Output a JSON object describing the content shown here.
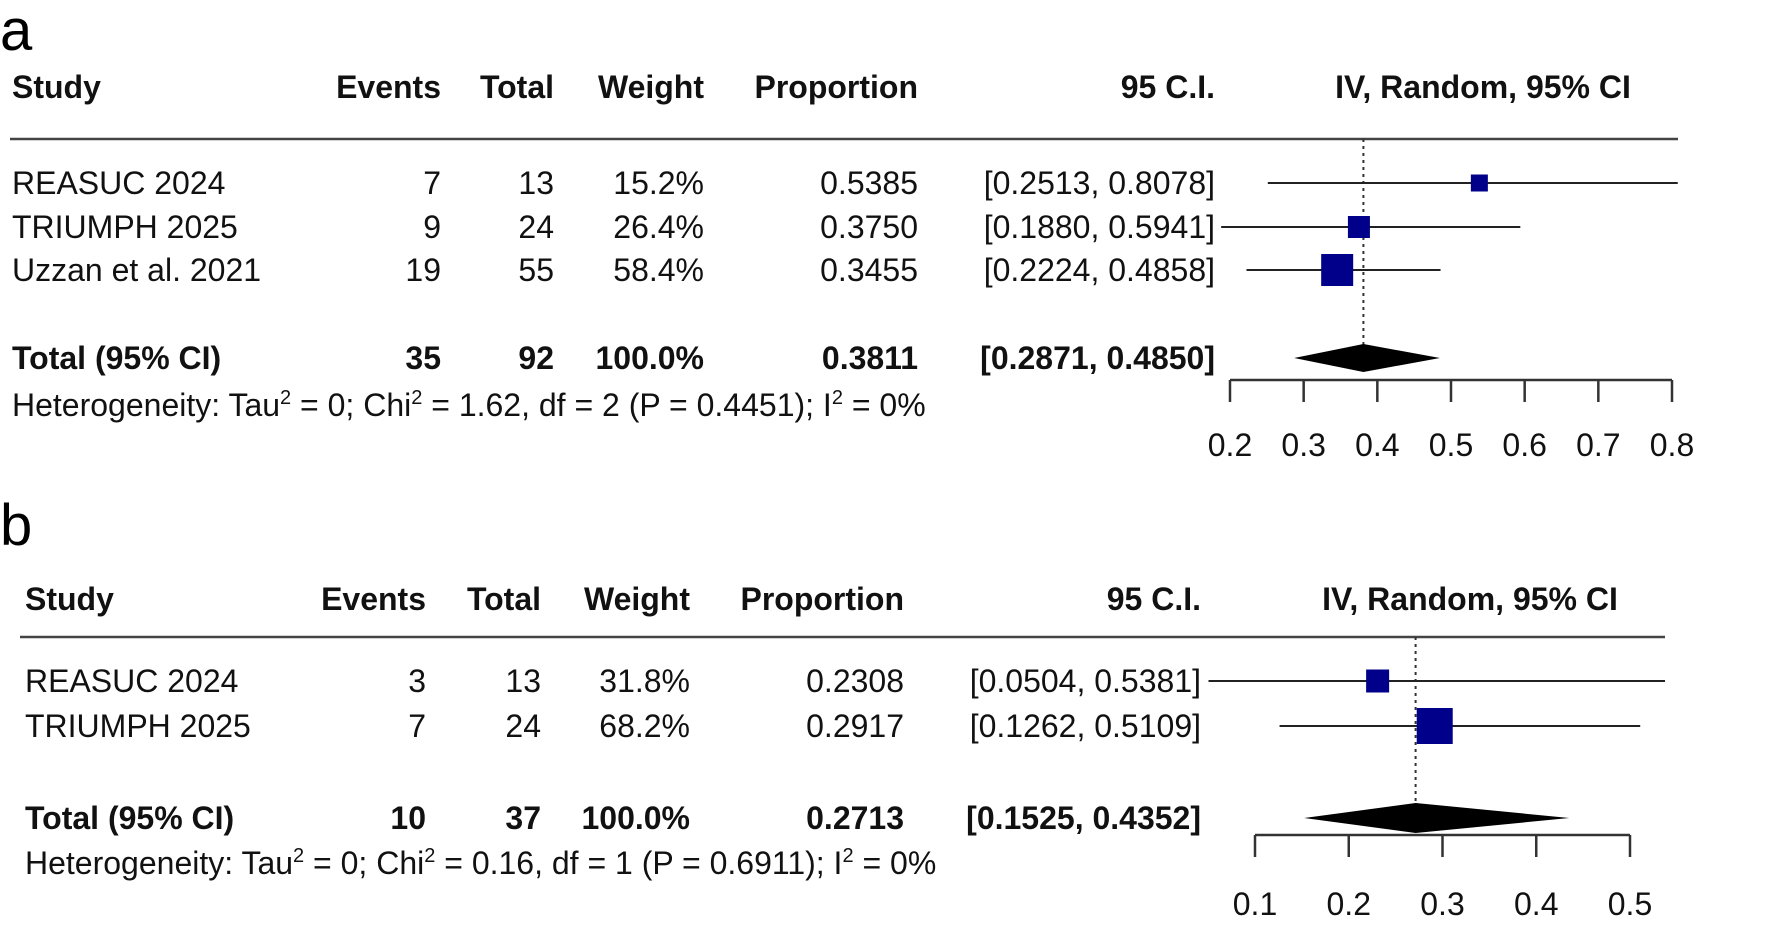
{
  "chart_data": [
    {
      "type": "forest",
      "panel_label": "a",
      "headers": {
        "study": "Study",
        "events": "Events",
        "total": "Total",
        "weight": "Weight",
        "proportion": "Proportion",
        "ci": "95 C.I.",
        "plot": "IV, Random, 95% CI"
      },
      "studies": [
        {
          "name": "REASUC 2024",
          "events": "7",
          "total": "13",
          "weight": "15.2%",
          "proportion": "0.5385",
          "ci": "[0.2513, 0.8078]",
          "est": 0.5385,
          "lo": 0.2513,
          "hi": 0.8078,
          "w": 15.2
        },
        {
          "name": "TRIUMPH 2025",
          "events": "9",
          "total": "24",
          "weight": "26.4%",
          "proportion": "0.3750",
          "ci": "[0.1880, 0.5941]",
          "est": 0.375,
          "lo": 0.188,
          "hi": 0.5941,
          "w": 26.4
        },
        {
          "name": "Uzzan et al. 2021",
          "events": "19",
          "total": "55",
          "weight": "58.4%",
          "proportion": "0.3455",
          "ci": "[0.2224, 0.4858]",
          "est": 0.3455,
          "lo": 0.2224,
          "hi": 0.4858,
          "w": 58.4
        }
      ],
      "total": {
        "name": "Total (95% CI)",
        "events": "35",
        "total": "92",
        "weight": "100.0%",
        "proportion": "0.3811",
        "ci": "[0.2871, 0.4850]",
        "est": 0.3811,
        "lo": 0.2871,
        "hi": 0.485
      },
      "heterogeneity": {
        "p1": "Heterogeneity: Tau",
        "s1": "2",
        "p2": " = 0; Chi",
        "s2": "2",
        "p3": " = 1.62, df = 2 (P = 0.4451); I",
        "s3": "2",
        "p4": " = 0%"
      },
      "xlim": [
        0.2,
        0.8
      ],
      "ticks": [
        "0.2",
        "0.3",
        "0.4",
        "0.5",
        "0.6",
        "0.7",
        "0.8"
      ]
    },
    {
      "type": "forest",
      "panel_label": "b",
      "headers": {
        "study": "Study",
        "events": "Events",
        "total": "Total",
        "weight": "Weight",
        "proportion": "Proportion",
        "ci": "95 C.I.",
        "plot": "IV, Random, 95% CI"
      },
      "studies": [
        {
          "name": "REASUC 2024",
          "events": "3",
          "total": "13",
          "weight": "31.8%",
          "proportion": "0.2308",
          "ci": "[0.0504, 0.5381]",
          "est": 0.2308,
          "lo": 0.0504,
          "hi": 0.5381,
          "w": 31.8
        },
        {
          "name": "TRIUMPH 2025",
          "events": "7",
          "total": "24",
          "weight": "68.2%",
          "proportion": "0.2917",
          "ci": "[0.1262, 0.5109]",
          "est": 0.2917,
          "lo": 0.1262,
          "hi": 0.5109,
          "w": 68.2
        }
      ],
      "total": {
        "name": "Total (95% CI)",
        "events": "10",
        "total": "37",
        "weight": "100.0%",
        "proportion": "0.2713",
        "ci": "[0.1525, 0.4352]",
        "est": 0.2713,
        "lo": 0.1525,
        "hi": 0.4352
      },
      "heterogeneity": {
        "p1": "Heterogeneity: Tau",
        "s1": "2",
        "p2": " = 0; Chi",
        "s2": "2",
        "p3": " = 0.16, df = 1 (P = 0.6911); I",
        "s3": "2",
        "p4": " = 0%"
      },
      "xlim": [
        0.1,
        0.5
      ],
      "ticks": [
        "0.1",
        "0.2",
        "0.3",
        "0.4",
        "0.5"
      ]
    }
  ],
  "colors": {
    "square": "#00008b",
    "line": "#222222",
    "diamond": "#000000"
  }
}
